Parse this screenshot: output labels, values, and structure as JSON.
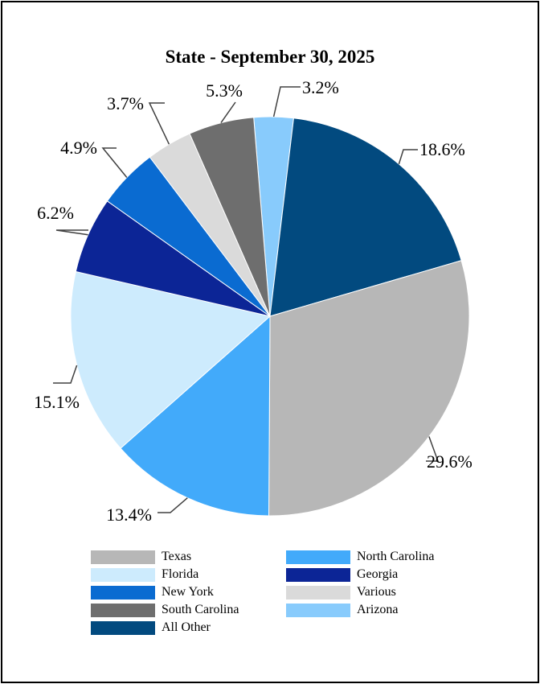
{
  "chart_data": {
    "type": "pie",
    "title": "State - September 30, 2025",
    "slices": [
      {
        "label": "Texas",
        "value": 29.6,
        "value_label": "29.6%",
        "color": "#b7b7b7"
      },
      {
        "label": "North Carolina",
        "value": 13.4,
        "value_label": "13.4%",
        "color": "#42aafa"
      },
      {
        "label": "Florida",
        "value": 15.1,
        "value_label": "15.1%",
        "color": "#cdebfd"
      },
      {
        "label": "Georgia",
        "value": 6.2,
        "value_label": "6.2%",
        "color": "#0c2596"
      },
      {
        "label": "New York",
        "value": 4.9,
        "value_label": "4.9%",
        "color": "#0a6bd1"
      },
      {
        "label": "Various",
        "value": 3.7,
        "value_label": "3.7%",
        "color": "#dadada"
      },
      {
        "label": "South Carolina",
        "value": 5.3,
        "value_label": "5.3%",
        "color": "#6e6e6e"
      },
      {
        "label": "Arizona",
        "value": 3.2,
        "value_label": "3.2%",
        "color": "#88cbfc"
      },
      {
        "label": "All Other",
        "value": 18.6,
        "value_label": "18.6%",
        "color": "#024a7f"
      }
    ],
    "legend_position": "bottom"
  }
}
